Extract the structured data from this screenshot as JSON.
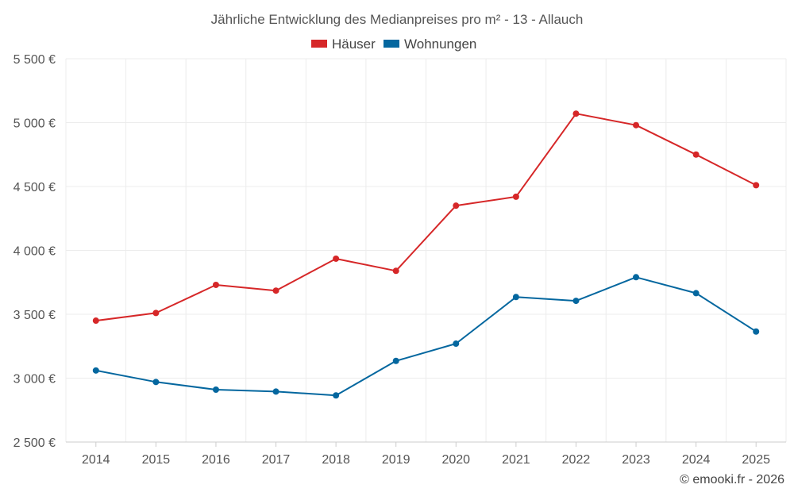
{
  "chart_data": {
    "type": "line",
    "title": "Jährliche Entwicklung des Medianpreises pro m² - 13 - Allauch",
    "xlabel": "",
    "ylabel": "",
    "categories": [
      "2014",
      "2015",
      "2016",
      "2017",
      "2018",
      "2019",
      "2020",
      "2021",
      "2022",
      "2023",
      "2024",
      "2025"
    ],
    "ylim": [
      2500,
      5500
    ],
    "yticks": [
      2500,
      3000,
      3500,
      4000,
      4500,
      5000,
      5500
    ],
    "ytick_labels": [
      "2 500 €",
      "3 000 €",
      "3 500 €",
      "4 000 €",
      "4 500 €",
      "5 000 €",
      "5 500 €"
    ],
    "grid": true,
    "legend_position": "top-center",
    "series": [
      {
        "name": "Häuser",
        "color": "#d62728",
        "values": [
          3450,
          3510,
          3730,
          3685,
          3935,
          3840,
          4350,
          4420,
          5070,
          4980,
          4750,
          4510
        ]
      },
      {
        "name": "Wohnungen",
        "color": "#04679f",
        "values": [
          3060,
          2970,
          2910,
          2895,
          2865,
          3135,
          3270,
          3635,
          3605,
          3790,
          3665,
          3365
        ]
      }
    ]
  },
  "credit": "© emooki.fr - 2026"
}
